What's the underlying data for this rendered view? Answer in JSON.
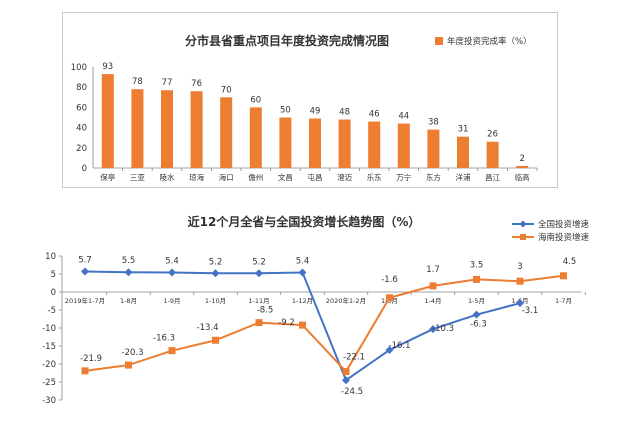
{
  "chart_data": [
    {
      "type": "bar",
      "title": "分市县省重点项目年度投资完成情况图",
      "legend": "年度投资完成率（%）",
      "legend_position": "top-right",
      "color": "#ED7D31",
      "categories": [
        "保亭",
        "三亚",
        "陵水",
        "琼海",
        "海口",
        "儋州",
        "文昌",
        "屯昌",
        "澄迈",
        "乐东",
        "万宁",
        "东方",
        "洋浦",
        "昌江",
        "临高"
      ],
      "values": [
        93,
        78,
        77,
        76,
        70,
        60,
        50,
        49,
        48,
        46,
        44,
        38,
        31,
        26,
        2
      ],
      "ylim": [
        0,
        100
      ],
      "yticks": [
        "0",
        "20",
        "40",
        "60",
        "80",
        "100"
      ],
      "grid": false
    },
    {
      "type": "line",
      "title": "近12个月全省与全国投资增长趋势图（%）",
      "legend_position": "top-right",
      "categories": [
        "2019年1-7月",
        "1-8月",
        "1-9月",
        "1-10月",
        "1-11月",
        "1-12月",
        "2020年1-2月",
        "1-3月",
        "1-4月",
        "1-5月",
        "1-6月",
        "1-7月"
      ],
      "ylim": [
        -30,
        10
      ],
      "yticks": [
        "10",
        "5",
        "0",
        "-5",
        "-10",
        "-15",
        "-20",
        "-25",
        "-30"
      ],
      "series": [
        {
          "name": "全国投资增速",
          "color": "#4472C4",
          "marker": "diamond",
          "values": [
            5.7,
            5.5,
            5.4,
            5.2,
            5.2,
            5.4,
            -24.5,
            -16.1,
            -10.3,
            -6.3,
            -3.1,
            null
          ],
          "labels": [
            "5.7",
            "5.5",
            "5.4",
            "5.2",
            "5.2",
            "5.4",
            "-24.5",
            "-16.1",
            "-10.3",
            "-6.3",
            "-3.1",
            ""
          ]
        },
        {
          "name": "海南投资增速",
          "color": "#ED7D31",
          "marker": "square",
          "values": [
            -21.9,
            -20.3,
            -16.3,
            -13.4,
            -8.5,
            -9.2,
            -22.1,
            -1.6,
            1.7,
            3.5,
            3,
            4.5
          ],
          "labels": [
            "-21.9",
            "-20.3",
            "-16.3",
            "-13.4",
            "-8.5",
            "-9.2",
            "-22.1",
            "-1.6",
            "1.7",
            "3.5",
            "3",
            "4.5"
          ]
        }
      ]
    }
  ]
}
